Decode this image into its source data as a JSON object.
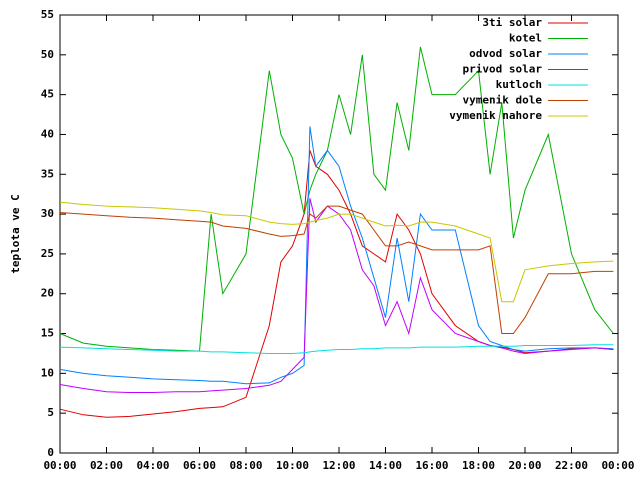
{
  "chart_data": {
    "type": "line",
    "ylabel": "teplota ve C",
    "x": [
      0,
      1,
      2,
      3,
      4,
      5,
      6,
      6.5,
      7,
      8,
      9,
      9.5,
      10,
      10.5,
      10.75,
      11,
      11.5,
      12,
      12.5,
      13,
      13.5,
      14,
      14.5,
      15,
      15.5,
      16,
      17,
      18,
      18.5,
      19,
      19.5,
      20,
      21,
      22,
      23,
      23.8
    ],
    "xlim": [
      0,
      24
    ],
    "xticks": [
      {
        "value": 0,
        "label": "00:00"
      },
      {
        "value": 2,
        "label": "02:00"
      },
      {
        "value": 4,
        "label": "04:00"
      },
      {
        "value": 6,
        "label": "06:00"
      },
      {
        "value": 8,
        "label": "08:00"
      },
      {
        "value": 10,
        "label": "10:00"
      },
      {
        "value": 12,
        "label": "12:00"
      },
      {
        "value": 14,
        "label": "14:00"
      },
      {
        "value": 16,
        "label": "16:00"
      },
      {
        "value": 18,
        "label": "18:00"
      },
      {
        "value": 20,
        "label": "20:00"
      },
      {
        "value": 22,
        "label": "22:00"
      },
      {
        "value": 24,
        "label": "00:00"
      }
    ],
    "ylim": [
      0,
      55
    ],
    "yticks": [
      0,
      5,
      10,
      15,
      20,
      25,
      30,
      35,
      40,
      45,
      50,
      55
    ],
    "legend": "upper right",
    "series": [
      {
        "name": "3ti solar",
        "color": "#e00000",
        "values": [
          5.5,
          4.8,
          4.5,
          4.6,
          4.9,
          5.2,
          5.6,
          5.7,
          5.8,
          7,
          16,
          24,
          26,
          30,
          38,
          36,
          35,
          33,
          30,
          26,
          25,
          24,
          30,
          28,
          25,
          20,
          16,
          14,
          13.5,
          13.3,
          13,
          12.6,
          12.8,
          13.1,
          13.2,
          13
        ]
      },
      {
        "name": "kotel",
        "color": "#00b000",
        "values": [
          15,
          13.8,
          13.4,
          13.2,
          13,
          12.9,
          12.8,
          30,
          20,
          25,
          48,
          40,
          37,
          30,
          33,
          35,
          38,
          45,
          40,
          50,
          35,
          33,
          44,
          38,
          51,
          45,
          45,
          48,
          35,
          44,
          27,
          33,
          40,
          25,
          18,
          15
        ]
      },
      {
        "name": "odvod solar",
        "color": "#0080ff",
        "values": [
          10.5,
          10,
          9.7,
          9.5,
          9.3,
          9.2,
          9.1,
          9,
          9,
          8.7,
          8.8,
          9.5,
          10,
          11,
          41,
          36,
          38,
          36,
          31,
          27,
          22,
          17,
          27,
          19,
          30,
          28,
          28,
          16,
          14,
          13.5,
          13,
          12.8,
          13.1,
          13.2,
          13.2,
          13.1
        ]
      },
      {
        "name": "privod solar",
        "color": "#c000ff",
        "values": [
          8.6,
          8.1,
          7.7,
          7.6,
          7.6,
          7.7,
          7.7,
          7.8,
          7.9,
          8.1,
          8.5,
          9,
          10.5,
          12,
          32,
          29,
          31,
          30,
          28,
          23,
          21,
          16,
          19,
          15,
          22,
          18,
          15,
          14,
          13.5,
          13.2,
          12.8,
          12.5,
          12.8,
          13,
          13.2,
          13
        ]
      },
      {
        "name": "kutloch",
        "color": "#00e0e0",
        "values": [
          13.3,
          13.2,
          13.1,
          13,
          12.9,
          12.8,
          12.8,
          12.7,
          12.7,
          12.6,
          12.5,
          12.5,
          12.5,
          12.6,
          12.7,
          12.8,
          12.9,
          13,
          13,
          13.1,
          13.1,
          13.2,
          13.2,
          13.2,
          13.3,
          13.3,
          13.3,
          13.4,
          13.4,
          13.4,
          13.4,
          13.5,
          13.5,
          13.5,
          13.6,
          13.6
        ]
      },
      {
        "name": "vymenik dole",
        "color": "#c04000",
        "values": [
          30.2,
          30,
          29.8,
          29.6,
          29.5,
          29.3,
          29.1,
          29,
          28.5,
          28.2,
          27.5,
          27.2,
          27.3,
          27.5,
          30,
          29.5,
          31,
          31,
          30.5,
          30,
          28,
          26,
          26,
          26.5,
          26,
          25.5,
          25.5,
          25.5,
          26,
          15,
          15,
          17,
          22.5,
          22.5,
          22.8,
          22.8
        ]
      },
      {
        "name": "vymenik nahore",
        "color": "#c8c800",
        "values": [
          31.5,
          31.2,
          31,
          30.9,
          30.8,
          30.6,
          30.4,
          30.2,
          29.9,
          29.8,
          29,
          28.8,
          28.7,
          28.8,
          29,
          29.2,
          29.5,
          30,
          30,
          29.5,
          29,
          28.5,
          28.6,
          28.5,
          29,
          29,
          28.5,
          27.5,
          27,
          19,
          19,
          23,
          23.5,
          23.8,
          24,
          24.1
        ]
      }
    ]
  }
}
